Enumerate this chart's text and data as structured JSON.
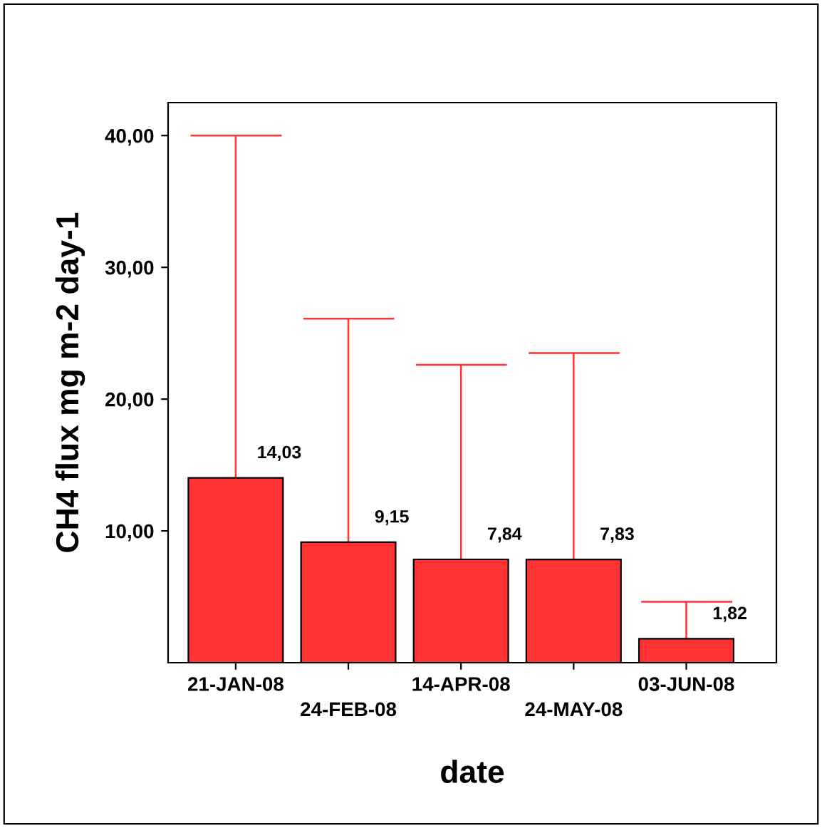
{
  "chart_data": {
    "type": "bar",
    "xlabel": "date",
    "ylabel": "CH4 flux mg m-2 day-1",
    "categories": [
      "21-JAN-08",
      "24-FEB-08",
      "14-APR-08",
      "24-MAY-08",
      "03-JUN-08"
    ],
    "values": [
      14.03,
      9.15,
      7.84,
      7.83,
      1.82
    ],
    "value_labels": [
      "14,03",
      "9,15",
      "7,84",
      "7,83",
      "1,82"
    ],
    "errors": [
      [
        14.03,
        40
      ],
      [
        9.15,
        26.1
      ],
      [
        7.84,
        22.6
      ],
      [
        7.83,
        23.5
      ],
      [
        1.82,
        4.62
      ]
    ],
    "color": "#ff3333",
    "ylim": [
      0,
      42.5
    ],
    "yticks": [
      {
        "value": 10,
        "label": "10,00"
      },
      {
        "value": 20,
        "label": "20,00"
      },
      {
        "value": 30,
        "label": "30,00"
      },
      {
        "value": 40,
        "label": "40,00"
      }
    ],
    "grid": false,
    "legend": false
  }
}
